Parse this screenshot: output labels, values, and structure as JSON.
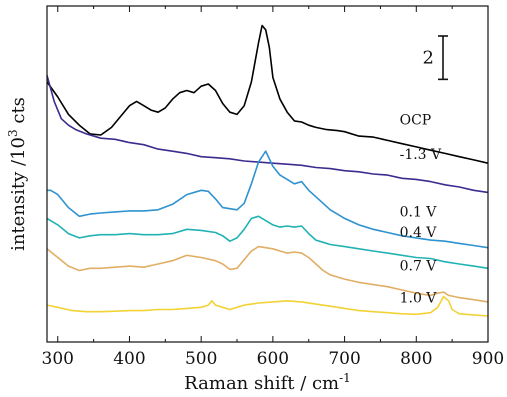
{
  "chart_data": {
    "type": "line",
    "title": "",
    "xlabel": "Raman shift / cm",
    "xlabel_superscript": "-1",
    "ylabel": "intensity /10",
    "ylabel_superscript": "3",
    "ylabel_suffix": " cts",
    "xlim": [
      285,
      900
    ],
    "xticks": [
      300,
      400,
      500,
      600,
      700,
      800,
      900
    ],
    "yticks_shown": false,
    "grid": false,
    "scale_bar": {
      "label": "2",
      "value": 2
    },
    "series": [
      {
        "name": "OCP",
        "color": "#000000",
        "points": [
          [
            285,
            3.0
          ],
          [
            300,
            2.3
          ],
          [
            315,
            1.5
          ],
          [
            330,
            1.0
          ],
          [
            345,
            0.6
          ],
          [
            360,
            0.55
          ],
          [
            375,
            0.9
          ],
          [
            390,
            1.5
          ],
          [
            400,
            1.9
          ],
          [
            410,
            2.1
          ],
          [
            420,
            1.9
          ],
          [
            430,
            1.7
          ],
          [
            440,
            1.6
          ],
          [
            450,
            1.8
          ],
          [
            460,
            2.2
          ],
          [
            470,
            2.5
          ],
          [
            480,
            2.6
          ],
          [
            490,
            2.5
          ],
          [
            500,
            2.8
          ],
          [
            510,
            2.9
          ],
          [
            520,
            2.6
          ],
          [
            530,
            2.0
          ],
          [
            540,
            1.6
          ],
          [
            550,
            1.5
          ],
          [
            560,
            1.9
          ],
          [
            570,
            3.0
          ],
          [
            580,
            4.8
          ],
          [
            585,
            5.6
          ],
          [
            590,
            5.4
          ],
          [
            595,
            4.6
          ],
          [
            600,
            3.2
          ],
          [
            610,
            2.2
          ],
          [
            620,
            1.6
          ],
          [
            630,
            1.2
          ],
          [
            640,
            1.15
          ],
          [
            650,
            1.0
          ],
          [
            660,
            0.9
          ],
          [
            675,
            0.8
          ],
          [
            690,
            0.75
          ],
          [
            700,
            0.7
          ],
          [
            720,
            0.5
          ],
          [
            740,
            0.45
          ],
          [
            760,
            0.3
          ],
          [
            780,
            0.15
          ],
          [
            800,
            0.0
          ],
          [
            820,
            -0.15
          ],
          [
            840,
            -0.3
          ],
          [
            860,
            -0.45
          ],
          [
            880,
            -0.6
          ],
          [
            900,
            -0.75
          ]
        ]
      },
      {
        "name": "-1.3 V",
        "color": "#3d2b8f",
        "points": [
          [
            285,
            3.3
          ],
          [
            295,
            2.1
          ],
          [
            305,
            1.3
          ],
          [
            315,
            1.0
          ],
          [
            325,
            0.8
          ],
          [
            340,
            0.6
          ],
          [
            360,
            0.4
          ],
          [
            380,
            0.35
          ],
          [
            400,
            0.2
          ],
          [
            420,
            0.1
          ],
          [
            440,
            -0.1
          ],
          [
            460,
            -0.2
          ],
          [
            480,
            -0.3
          ],
          [
            500,
            -0.45
          ],
          [
            520,
            -0.5
          ],
          [
            540,
            -0.55
          ],
          [
            560,
            -0.65
          ],
          [
            580,
            -0.7
          ],
          [
            600,
            -0.75
          ],
          [
            620,
            -0.8
          ],
          [
            640,
            -0.85
          ],
          [
            660,
            -0.95
          ],
          [
            680,
            -1.0
          ],
          [
            700,
            -1.1
          ],
          [
            720,
            -1.15
          ],
          [
            740,
            -1.25
          ],
          [
            760,
            -1.3
          ],
          [
            780,
            -1.45
          ],
          [
            800,
            -1.5
          ],
          [
            820,
            -1.6
          ],
          [
            840,
            -1.75
          ],
          [
            860,
            -1.85
          ],
          [
            880,
            -2.0
          ],
          [
            900,
            -2.1
          ]
        ]
      },
      {
        "name": "0.1 V",
        "color": "#2e93d0",
        "points": [
          [
            285,
            -2.0
          ],
          [
            290,
            -2.0
          ],
          [
            300,
            -2.2
          ],
          [
            315,
            -2.8
          ],
          [
            330,
            -3.2
          ],
          [
            345,
            -3.1
          ],
          [
            360,
            -3.05
          ],
          [
            380,
            -3.0
          ],
          [
            400,
            -2.95
          ],
          [
            420,
            -2.95
          ],
          [
            440,
            -2.9
          ],
          [
            460,
            -2.65
          ],
          [
            480,
            -2.2
          ],
          [
            500,
            -2.0
          ],
          [
            510,
            -2.05
          ],
          [
            520,
            -2.4
          ],
          [
            530,
            -2.8
          ],
          [
            540,
            -2.85
          ],
          [
            550,
            -2.9
          ],
          [
            560,
            -2.6
          ],
          [
            570,
            -1.7
          ],
          [
            580,
            -0.7
          ],
          [
            590,
            -0.2
          ],
          [
            600,
            -0.9
          ],
          [
            610,
            -1.3
          ],
          [
            620,
            -1.5
          ],
          [
            630,
            -1.7
          ],
          [
            640,
            -1.6
          ],
          [
            650,
            -2.0
          ],
          [
            660,
            -2.3
          ],
          [
            670,
            -2.6
          ],
          [
            680,
            -2.9
          ],
          [
            690,
            -3.1
          ],
          [
            700,
            -3.3
          ],
          [
            720,
            -3.6
          ],
          [
            740,
            -3.8
          ],
          [
            760,
            -3.95
          ],
          [
            780,
            -4.1
          ],
          [
            800,
            -4.2
          ],
          [
            820,
            -4.3
          ],
          [
            840,
            -4.35
          ],
          [
            860,
            -4.45
          ],
          [
            880,
            -4.55
          ],
          [
            900,
            -4.65
          ]
        ]
      },
      {
        "name": "0.4 V",
        "color": "#22b2b3",
        "points": [
          [
            285,
            -3.3
          ],
          [
            300,
            -3.6
          ],
          [
            315,
            -4.0
          ],
          [
            330,
            -4.2
          ],
          [
            345,
            -4.1
          ],
          [
            360,
            -4.05
          ],
          [
            380,
            -4.05
          ],
          [
            400,
            -4.0
          ],
          [
            420,
            -4.05
          ],
          [
            440,
            -4.05
          ],
          [
            460,
            -4.0
          ],
          [
            480,
            -3.8
          ],
          [
            500,
            -3.85
          ],
          [
            520,
            -3.95
          ],
          [
            530,
            -4.1
          ],
          [
            540,
            -4.35
          ],
          [
            550,
            -4.2
          ],
          [
            560,
            -3.8
          ],
          [
            570,
            -3.3
          ],
          [
            580,
            -3.2
          ],
          [
            590,
            -3.4
          ],
          [
            600,
            -3.6
          ],
          [
            610,
            -3.7
          ],
          [
            620,
            -3.65
          ],
          [
            630,
            -3.7
          ],
          [
            640,
            -3.65
          ],
          [
            650,
            -4.0
          ],
          [
            660,
            -4.3
          ],
          [
            670,
            -4.4
          ],
          [
            680,
            -4.5
          ],
          [
            700,
            -4.6
          ],
          [
            720,
            -4.7
          ],
          [
            740,
            -4.8
          ],
          [
            760,
            -4.9
          ],
          [
            780,
            -5.0
          ],
          [
            800,
            -5.1
          ],
          [
            820,
            -5.15
          ],
          [
            840,
            -5.3
          ],
          [
            860,
            -5.4
          ],
          [
            880,
            -5.5
          ],
          [
            900,
            -5.6
          ]
        ]
      },
      {
        "name": "0.7 V",
        "color": "#e1ae66",
        "points": [
          [
            285,
            -4.7
          ],
          [
            300,
            -5.1
          ],
          [
            315,
            -5.5
          ],
          [
            330,
            -5.7
          ],
          [
            345,
            -5.6
          ],
          [
            360,
            -5.6
          ],
          [
            380,
            -5.55
          ],
          [
            400,
            -5.5
          ],
          [
            420,
            -5.55
          ],
          [
            440,
            -5.4
          ],
          [
            460,
            -5.25
          ],
          [
            480,
            -5.0
          ],
          [
            500,
            -5.1
          ],
          [
            520,
            -5.25
          ],
          [
            530,
            -5.4
          ],
          [
            540,
            -5.65
          ],
          [
            550,
            -5.6
          ],
          [
            560,
            -5.2
          ],
          [
            570,
            -4.8
          ],
          [
            580,
            -4.6
          ],
          [
            590,
            -4.65
          ],
          [
            600,
            -4.7
          ],
          [
            610,
            -4.8
          ],
          [
            620,
            -4.9
          ],
          [
            630,
            -4.85
          ],
          [
            640,
            -4.9
          ],
          [
            650,
            -5.1
          ],
          [
            660,
            -5.4
          ],
          [
            670,
            -5.7
          ],
          [
            680,
            -5.9
          ],
          [
            690,
            -6.0
          ],
          [
            700,
            -6.1
          ],
          [
            720,
            -6.25
          ],
          [
            740,
            -6.35
          ],
          [
            760,
            -6.45
          ],
          [
            780,
            -6.6
          ],
          [
            800,
            -6.75
          ],
          [
            810,
            -6.8
          ],
          [
            820,
            -6.85
          ],
          [
            830,
            -6.75
          ],
          [
            838,
            -6.7
          ],
          [
            845,
            -6.85
          ],
          [
            860,
            -6.95
          ],
          [
            880,
            -7.05
          ],
          [
            900,
            -7.15
          ]
        ]
      },
      {
        "name": "1.0 V",
        "color": "#f2d236",
        "points": [
          [
            285,
            -7.3
          ],
          [
            300,
            -7.4
          ],
          [
            320,
            -7.55
          ],
          [
            340,
            -7.6
          ],
          [
            360,
            -7.6
          ],
          [
            380,
            -7.58
          ],
          [
            400,
            -7.55
          ],
          [
            420,
            -7.55
          ],
          [
            440,
            -7.5
          ],
          [
            460,
            -7.5
          ],
          [
            480,
            -7.45
          ],
          [
            500,
            -7.4
          ],
          [
            510,
            -7.3
          ],
          [
            515,
            -7.1
          ],
          [
            520,
            -7.3
          ],
          [
            530,
            -7.4
          ],
          [
            540,
            -7.5
          ],
          [
            550,
            -7.4
          ],
          [
            560,
            -7.3
          ],
          [
            580,
            -7.2
          ],
          [
            600,
            -7.15
          ],
          [
            620,
            -7.1
          ],
          [
            640,
            -7.15
          ],
          [
            660,
            -7.25
          ],
          [
            680,
            -7.35
          ],
          [
            700,
            -7.45
          ],
          [
            720,
            -7.55
          ],
          [
            740,
            -7.6
          ],
          [
            760,
            -7.65
          ],
          [
            780,
            -7.7
          ],
          [
            800,
            -7.72
          ],
          [
            820,
            -7.65
          ],
          [
            830,
            -7.4
          ],
          [
            838,
            -6.9
          ],
          [
            845,
            -7.1
          ],
          [
            850,
            -7.5
          ],
          [
            860,
            -7.7
          ],
          [
            880,
            -7.75
          ],
          [
            900,
            -7.8
          ]
        ]
      }
    ]
  }
}
